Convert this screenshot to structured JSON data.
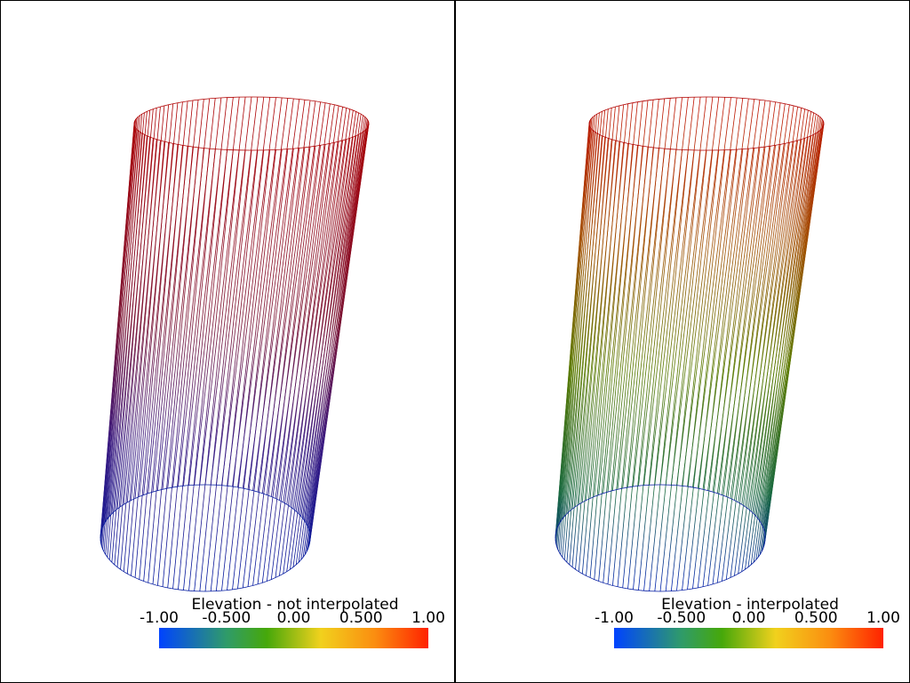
{
  "panels": [
    {
      "title": "Elevation - not interpolated",
      "ticks": [
        "-1.00",
        "-0.500",
        "0.00",
        "0.500",
        "1.00"
      ]
    },
    {
      "title": "Elevation - interpolated",
      "ticks": [
        "-1.00",
        "-0.500",
        "0.00",
        "0.500",
        "1.00"
      ]
    }
  ]
}
